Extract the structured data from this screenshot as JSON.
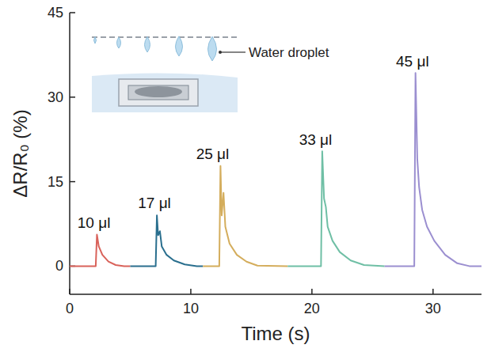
{
  "chart_data": {
    "type": "line",
    "x_label": "Time (s)",
    "y_label": "ΔR/R₀ (%)",
    "xlim": [
      0,
      34
    ],
    "xticks": [
      0,
      10,
      20,
      30
    ],
    "ylim": [
      -5,
      45
    ],
    "yticks": [
      0,
      15,
      30,
      45
    ],
    "grid": false,
    "inset": {
      "label": "Water droplet"
    },
    "annotations": [
      {
        "text": "10 μl",
        "x": 2.0,
        "y": 6.8
      },
      {
        "text": "17 μl",
        "x": 7.0,
        "y": 10.3
      },
      {
        "text": "25 μl",
        "x": 11.8,
        "y": 19.0
      },
      {
        "text": "33 μl",
        "x": 20.3,
        "y": 21.6
      },
      {
        "text": "45 μl",
        "x": 28.3,
        "y": 35.5
      }
    ],
    "series": [
      {
        "name": "10 μl",
        "color": "#d9625a",
        "x": [
          0,
          2.15,
          2.25,
          2.4,
          2.7,
          3.2,
          3.8,
          4.5,
          5
        ],
        "values": [
          0,
          0,
          5.6,
          3.5,
          2.0,
          0.8,
          0.2,
          0,
          0
        ]
      },
      {
        "name": "17 μl",
        "color": "#2a6f8e",
        "x": [
          5,
          7.1,
          7.2,
          7.3,
          7.45,
          7.6,
          8.0,
          8.6,
          9.5,
          10.5,
          11
        ],
        "values": [
          0,
          0,
          9.0,
          5.5,
          6.2,
          3.5,
          2.0,
          1.0,
          0.3,
          0,
          0
        ]
      },
      {
        "name": "25 μl",
        "color": "#d4ad5c",
        "x": [
          11,
          12.35,
          12.45,
          12.55,
          12.7,
          12.85,
          13.2,
          13.8,
          14.6,
          15.5,
          18
        ],
        "values": [
          0,
          0,
          17.8,
          9.0,
          13.0,
          7.0,
          4.0,
          2.0,
          0.8,
          0.1,
          0
        ]
      },
      {
        "name": "33 μl",
        "color": "#6fbfa5",
        "x": [
          18,
          20.75,
          20.85,
          21.0,
          21.15,
          21.3,
          21.7,
          22.3,
          23.2,
          24.3,
          26
        ],
        "values": [
          0,
          0,
          20.4,
          12.0,
          10.5,
          7.0,
          4.5,
          2.5,
          1.0,
          0.2,
          0
        ]
      },
      {
        "name": "45 μl",
        "color": "#9b8fd0",
        "x": [
          26,
          28.45,
          28.55,
          28.7,
          28.85,
          29.1,
          29.5,
          30.1,
          31.0,
          32.0,
          33.0,
          34
        ],
        "values": [
          0,
          0,
          34.3,
          19.0,
          14.0,
          10.0,
          7.0,
          4.5,
          2.0,
          0.5,
          0,
          0
        ]
      }
    ]
  }
}
